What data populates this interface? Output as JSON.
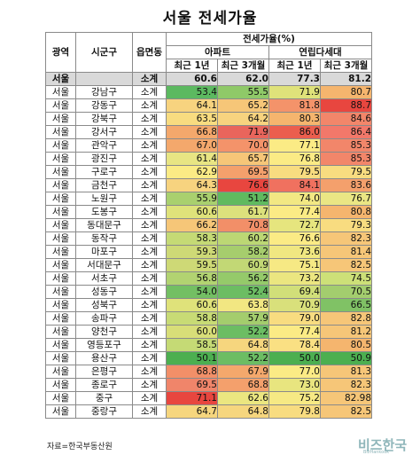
{
  "title": "서울 전세가율",
  "header": {
    "region": "광역",
    "district": "시군구",
    "town": "읍면동",
    "ratio": "전세가율(%)",
    "apt": "아파트",
    "villa": "연립다세대",
    "recent1": "최근 1년",
    "recent3m": "최근 3개월"
  },
  "total_row": {
    "region": "서울",
    "town": "소계",
    "v": [
      "60.6",
      "62.0",
      "77.3",
      "81.2"
    ]
  },
  "source": "자료=한국부동산원",
  "logo": "비즈한국",
  "logo_sub": "BizHankook",
  "chart_data": {
    "type": "table",
    "title": "서울 전세가율",
    "columns": [
      "광역",
      "시군구",
      "읍면동",
      "아파트 최근 1년",
      "아파트 최근 3개월",
      "연립다세대 최근 1년",
      "연립다세대 최근 3개월"
    ],
    "unit": "%",
    "rows": [
      {
        "region": "서울",
        "district": "강남구",
        "town": "소계",
        "v": [
          "53.4",
          "55.5",
          "71.9",
          "80.7"
        ],
        "c": [
          "#5cb960",
          "#8fc968",
          "#dfe27a",
          "#f5b56e"
        ]
      },
      {
        "region": "서울",
        "district": "강동구",
        "town": "소계",
        "v": [
          "64.1",
          "65.2",
          "81.8",
          "88.7"
        ],
        "c": [
          "#f7d37f",
          "#f6c678",
          "#f4936a",
          "#e8463f"
        ]
      },
      {
        "region": "서울",
        "district": "강북구",
        "town": "소계",
        "v": [
          "63.5",
          "64.2",
          "80.3",
          "84.6"
        ],
        "c": [
          "#f8dc80",
          "#f7d37f",
          "#f5b56e",
          "#f2866a"
        ]
      },
      {
        "region": "서울",
        "district": "강서구",
        "town": "소계",
        "v": [
          "66.8",
          "71.9",
          "86.0",
          "86.4"
        ],
        "c": [
          "#f4a86c",
          "#e9655c",
          "#eb5e4e",
          "#f2786a"
        ]
      },
      {
        "region": "서울",
        "district": "관악구",
        "town": "소계",
        "v": [
          "67.0",
          "70.0",
          "77.1",
          "85.3"
        ],
        "c": [
          "#f4a86c",
          "#f4936a",
          "#fbeb85",
          "#f2866a"
        ]
      },
      {
        "region": "서울",
        "district": "광진구",
        "town": "소계",
        "v": [
          "61.4",
          "65.7",
          "76.8",
          "85.3"
        ],
        "c": [
          "#e8e583",
          "#f6c678",
          "#fbeb85",
          "#f2866a"
        ]
      },
      {
        "region": "서울",
        "district": "구로구",
        "town": "소계",
        "v": [
          "62.9",
          "69.5",
          "79.5",
          "79.5"
        ],
        "c": [
          "#fbeb85",
          "#f4a06c",
          "#f8dc80",
          "#f8dc80"
        ]
      },
      {
        "region": "서울",
        "district": "금천구",
        "town": "소계",
        "v": [
          "64.3",
          "76.6",
          "84.1",
          "83.6"
        ],
        "c": [
          "#f7d37f",
          "#e8463f",
          "#f0715f",
          "#f4a06c"
        ]
      },
      {
        "region": "서울",
        "district": "노원구",
        "town": "소계",
        "v": [
          "55.9",
          "51.2",
          "74.0",
          "76.7"
        ],
        "c": [
          "#a9d06e",
          "#60ba5f",
          "#f2e883",
          "#eae684"
        ]
      },
      {
        "region": "서울",
        "district": "도봉구",
        "town": "소계",
        "v": [
          "60.6",
          "61.7",
          "77.4",
          "80.8"
        ],
        "c": [
          "#dfe27a",
          "#dce17c",
          "#fbeb85",
          "#f5b56e"
        ]
      },
      {
        "region": "서울",
        "district": "동대문구",
        "town": "소계",
        "v": [
          "66.2",
          "70.8",
          "72.7",
          "79.3"
        ],
        "c": [
          "#f6c678",
          "#f28f68",
          "#e6e57e",
          "#f8dc80"
        ]
      },
      {
        "region": "서울",
        "district": "동작구",
        "town": "소계",
        "v": [
          "58.3",
          "60.2",
          "76.6",
          "82.3"
        ],
        "c": [
          "#c5da75",
          "#bcd774",
          "#fbeb85",
          "#f6c678"
        ]
      },
      {
        "region": "서울",
        "district": "마포구",
        "town": "소계",
        "v": [
          "59.3",
          "58.2",
          "73.6",
          "81.4"
        ],
        "c": [
          "#ced976",
          "#a6cd6d",
          "#f0e781",
          "#f6c678"
        ]
      },
      {
        "region": "서울",
        "district": "서대문구",
        "town": "소계",
        "v": [
          "59.5",
          "60.9",
          "75.1",
          "82.5"
        ],
        "c": [
          "#ced976",
          "#c2d875",
          "#f6e984",
          "#f6c678"
        ]
      },
      {
        "region": "서울",
        "district": "서초구",
        "town": "소계",
        "v": [
          "56.8",
          "56.2",
          "73.2",
          "74.5"
        ],
        "c": [
          "#b2d371",
          "#95ca6a",
          "#ebe680",
          "#cde078"
        ]
      },
      {
        "region": "서울",
        "district": "성동구",
        "town": "소계",
        "v": [
          "54.0",
          "52.4",
          "69.4",
          "70.5"
        ],
        "c": [
          "#73bf63",
          "#6cbd63",
          "#d1df79",
          "#a3cd6e"
        ]
      },
      {
        "region": "서울",
        "district": "성북구",
        "town": "소계",
        "v": [
          "60.6",
          "63.8",
          "70.9",
          "66.5"
        ],
        "c": [
          "#dfe27a",
          "#f2e782",
          "#d9e07b",
          "#80c265"
        ]
      },
      {
        "region": "서울",
        "district": "송파구",
        "town": "소계",
        "v": [
          "58.8",
          "57.9",
          "79.0",
          "82.8"
        ],
        "c": [
          "#c8db75",
          "#a4cd6d",
          "#f8dc80",
          "#f6c678"
        ]
      },
      {
        "region": "서울",
        "district": "양천구",
        "town": "소계",
        "v": [
          "60.0",
          "52.2",
          "77.4",
          "81.2"
        ],
        "c": [
          "#d8de78",
          "#6cbd63",
          "#fbeb85",
          "#f6c678"
        ]
      },
      {
        "region": "서울",
        "district": "영등포구",
        "town": "소계",
        "v": [
          "58.5",
          "64.8",
          "78.4",
          "80.5"
        ],
        "c": [
          "#c5da75",
          "#f6d67e",
          "#fae083",
          "#f5b56e"
        ]
      },
      {
        "region": "서울",
        "district": "용산구",
        "town": "소계",
        "v": [
          "50.1",
          "52.2",
          "50.0",
          "50.9"
        ],
        "c": [
          "#4caf50",
          "#6cbd63",
          "#4caf50",
          "#4caf50"
        ]
      },
      {
        "region": "서울",
        "district": "은평구",
        "town": "소계",
        "v": [
          "68.8",
          "67.9",
          "77.0",
          "81.3"
        ],
        "c": [
          "#f28f68",
          "#f4a86c",
          "#fbeb85",
          "#f6c678"
        ]
      },
      {
        "region": "서울",
        "district": "종로구",
        "town": "소계",
        "v": [
          "69.5",
          "68.8",
          "73.0",
          "82.3"
        ],
        "c": [
          "#f0856a",
          "#f4a06c",
          "#e8e57f",
          "#f6c678"
        ]
      },
      {
        "region": "서울",
        "district": "중구",
        "town": "소계",
        "v": [
          "71.1",
          "62.6",
          "75.2",
          "82.98"
        ],
        "c": [
          "#e8463f",
          "#ebe680",
          "#f6e984",
          "#f6c678"
        ]
      },
      {
        "region": "서울",
        "district": "중랑구",
        "town": "소계",
        "v": [
          "64.7",
          "64.8",
          "79.8",
          "82.5"
        ],
        "c": [
          "#f6d67e",
          "#f6d67e",
          "#f8dc80",
          "#f6c678"
        ]
      }
    ]
  }
}
